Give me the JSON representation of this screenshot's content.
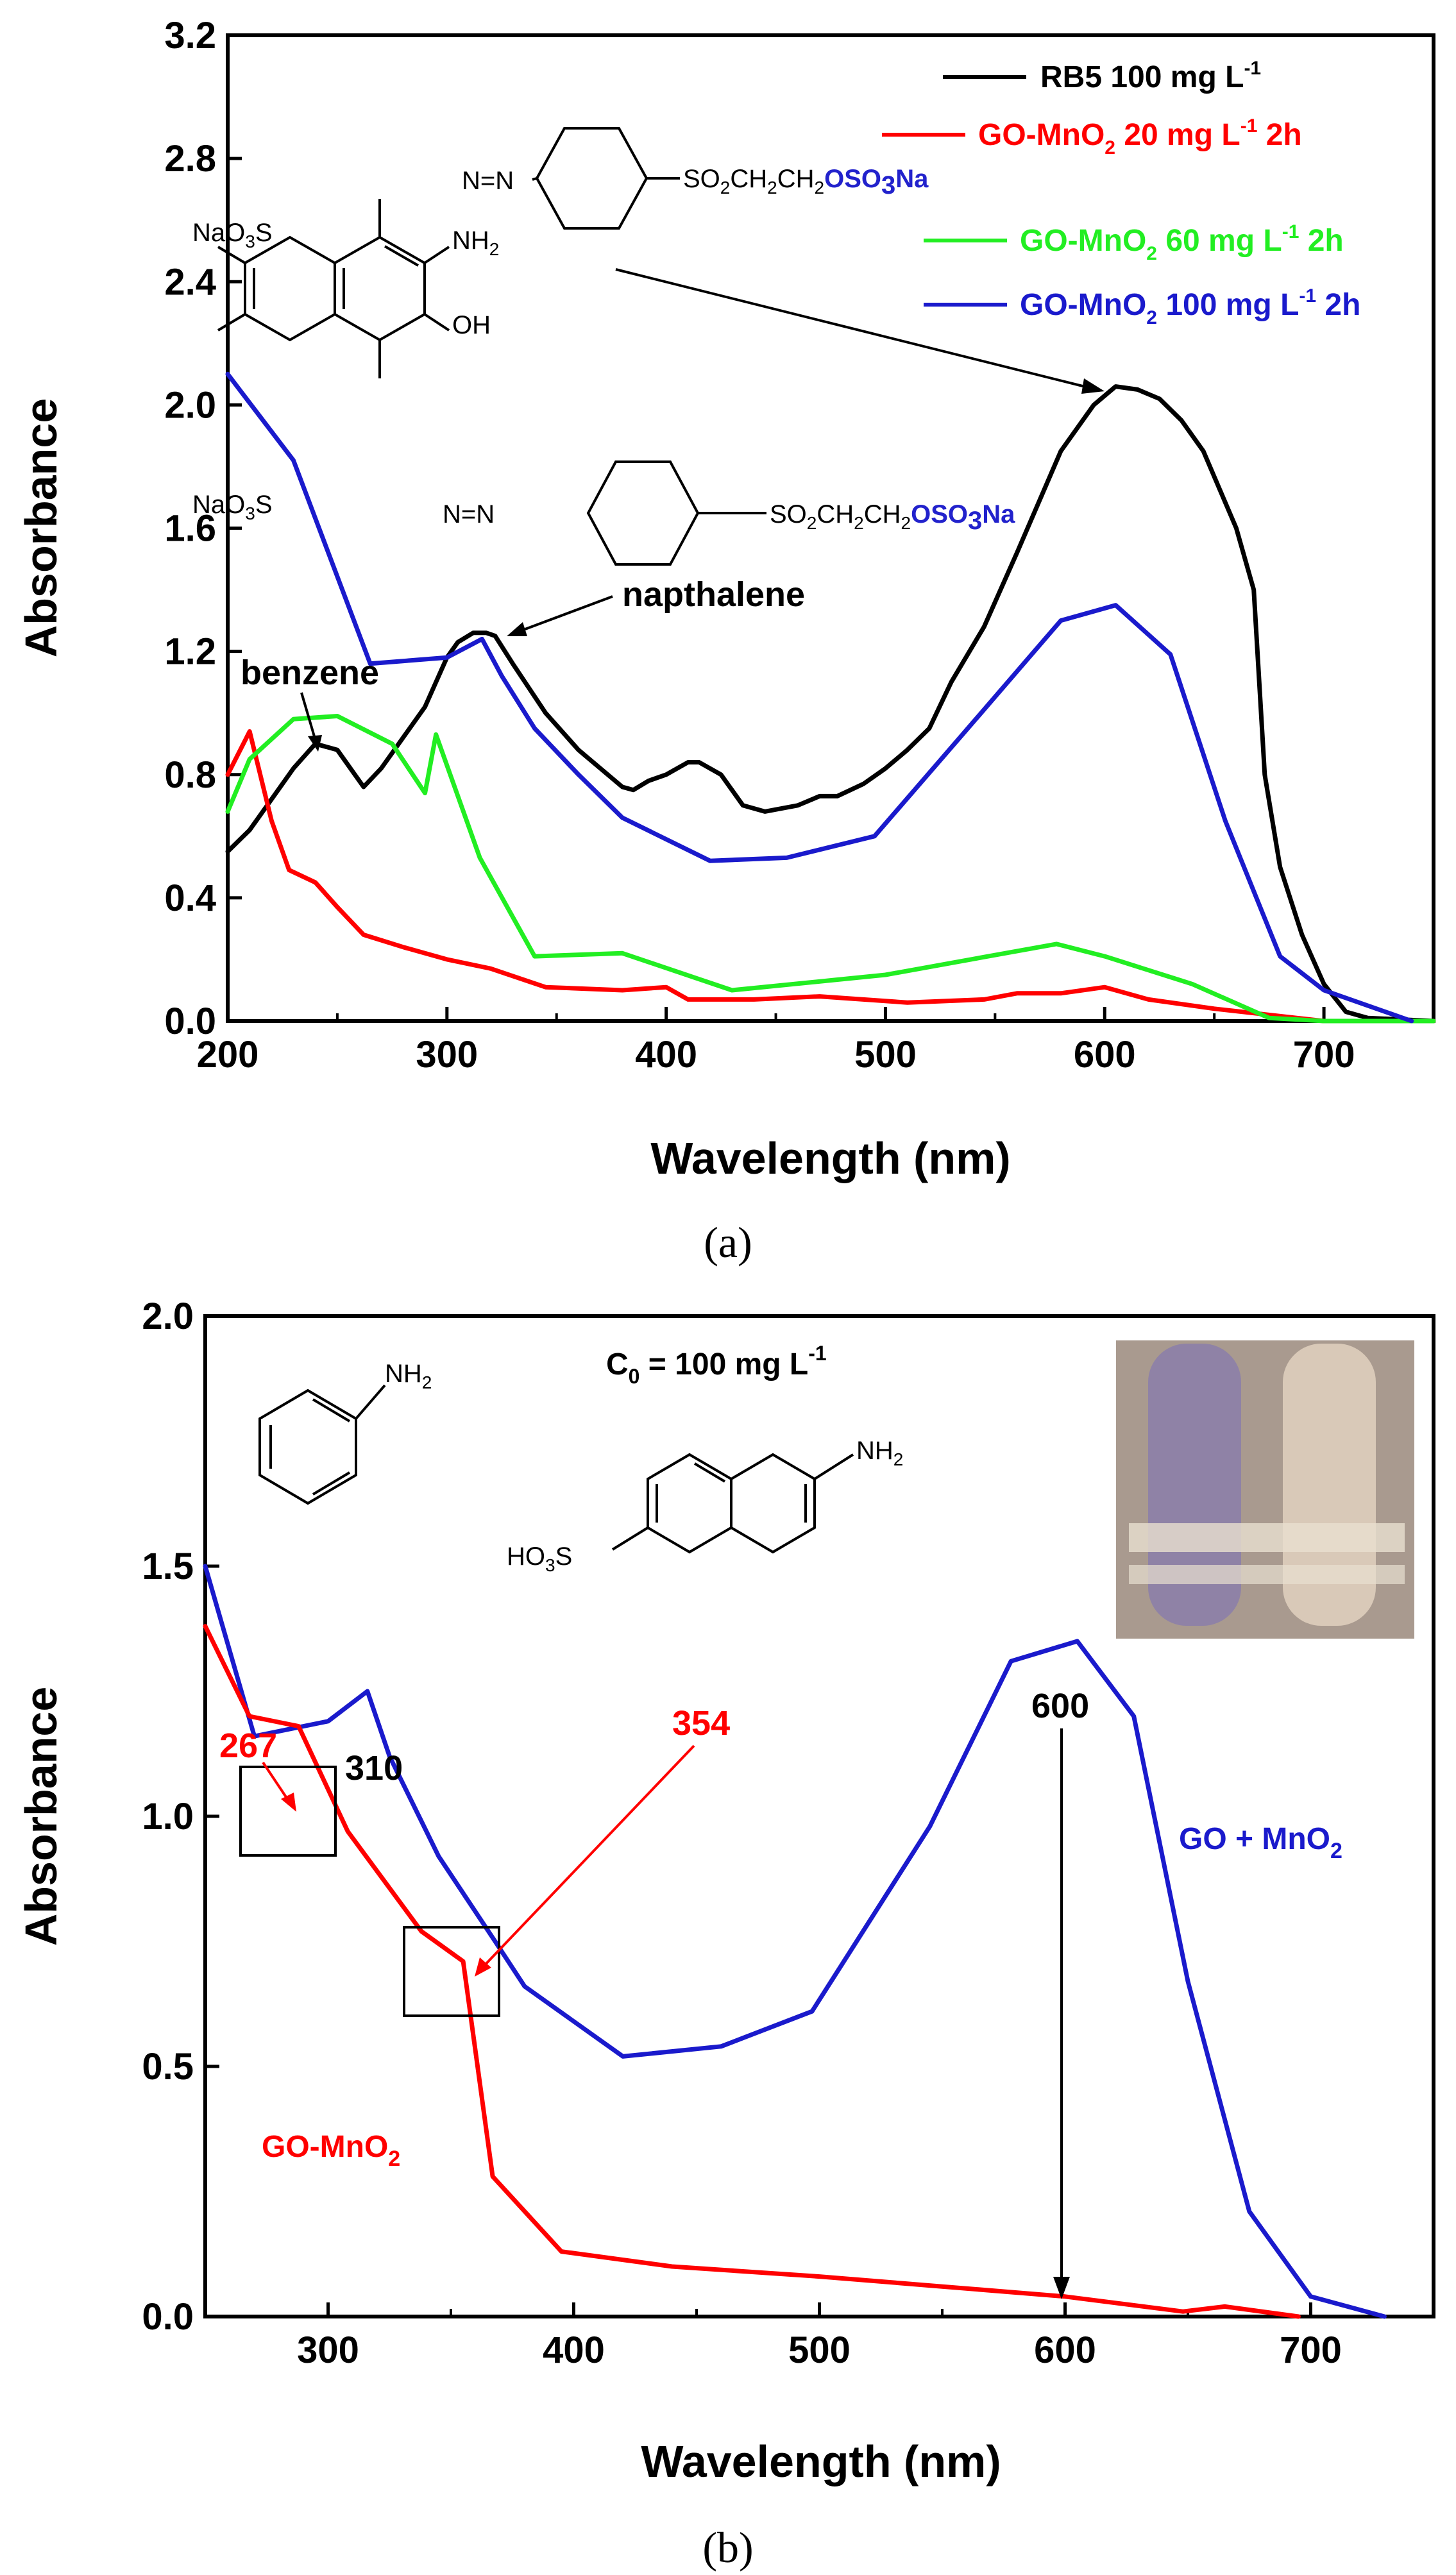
{
  "chart_data": [
    {
      "type": "line",
      "panel_label": "(a)",
      "xlabel": "Wavelength (nm)",
      "ylabel": "Absorbance",
      "xlim": [
        200,
        750
      ],
      "ylim": [
        0,
        3.2
      ],
      "xticks": [
        "200",
        "300",
        "400",
        "500",
        "600",
        "700"
      ],
      "yticks": [
        "0.0",
        "0.4",
        "0.8",
        "1.2",
        "1.6",
        "2.0",
        "2.4",
        "2.8",
        "3.2"
      ],
      "legend_position": "top-right",
      "series": [
        {
          "name": "RB5 100 mg L-1",
          "color": "#000000",
          "x": [
            200,
            210,
            220,
            230,
            240,
            250,
            262,
            270,
            290,
            300,
            305,
            312,
            318,
            322,
            330,
            345,
            360,
            380,
            385,
            392,
            400,
            410,
            415,
            425,
            435,
            445,
            460,
            470,
            478,
            490,
            500,
            510,
            520,
            530,
            545,
            560,
            580,
            595,
            605,
            615,
            625,
            635,
            645,
            660,
            668,
            673,
            680,
            690,
            700,
            710,
            720,
            750
          ],
          "y": [
            0.55,
            0.62,
            0.72,
            0.82,
            0.9,
            0.88,
            0.76,
            0.82,
            1.02,
            1.18,
            1.23,
            1.26,
            1.26,
            1.25,
            1.16,
            1.0,
            0.88,
            0.76,
            0.75,
            0.78,
            0.8,
            0.84,
            0.84,
            0.8,
            0.7,
            0.68,
            0.7,
            0.73,
            0.73,
            0.77,
            0.82,
            0.88,
            0.95,
            1.1,
            1.28,
            1.52,
            1.85,
            2.0,
            2.06,
            2.05,
            2.02,
            1.95,
            1.85,
            1.6,
            1.4,
            0.8,
            0.5,
            0.28,
            0.12,
            0.03,
            0.01,
            0.0
          ]
        },
        {
          "name": "GO-MnO2 20 mg L-1 2h",
          "color": "#ff0000",
          "x": [
            200,
            210,
            220,
            228,
            240,
            250,
            262,
            280,
            300,
            320,
            345,
            380,
            400,
            410,
            440,
            470,
            510,
            545,
            560,
            580,
            600,
            620,
            650,
            700,
            750
          ],
          "y": [
            0.8,
            0.94,
            0.65,
            0.49,
            0.45,
            0.37,
            0.28,
            0.24,
            0.2,
            0.17,
            0.11,
            0.1,
            0.11,
            0.07,
            0.07,
            0.08,
            0.06,
            0.07,
            0.09,
            0.09,
            0.11,
            0.07,
            0.04,
            0.0,
            0.0
          ]
        },
        {
          "name": "GO-MnO2 60 mg L-1 2h",
          "color": "#22ee22",
          "x": [
            200,
            210,
            230,
            250,
            275,
            290,
            295,
            315,
            340,
            380,
            430,
            500,
            578,
            600,
            640,
            675,
            700,
            750
          ],
          "y": [
            0.68,
            0.85,
            0.98,
            0.99,
            0.9,
            0.74,
            0.93,
            0.53,
            0.21,
            0.22,
            0.1,
            0.15,
            0.25,
            0.21,
            0.12,
            0.01,
            0.0,
            0.0
          ]
        },
        {
          "name": "GO-MnO2 100 mg L-1 2h",
          "color": "#1a1acc",
          "x": [
            200,
            230,
            265,
            300,
            316,
            325,
            340,
            360,
            380,
            420,
            455,
            495,
            540,
            580,
            605,
            630,
            655,
            680,
            700,
            740
          ],
          "y": [
            2.1,
            1.82,
            1.16,
            1.18,
            1.24,
            1.12,
            0.95,
            0.8,
            0.66,
            0.52,
            0.53,
            0.6,
            0.97,
            1.3,
            1.35,
            1.19,
            0.65,
            0.21,
            0.1,
            0.0
          ]
        }
      ],
      "annotations": [
        "benzene",
        "napthalene"
      ],
      "structure_labels": [
        "NaO3S",
        "N=N",
        "SO2CH2CH2",
        "OSO3Na",
        "NH2",
        "OH",
        "NaO3S",
        "N=N",
        "SO2CH2CH2",
        "OSO3Na"
      ]
    },
    {
      "type": "line",
      "panel_label": "(b)",
      "xlabel": "Wavelength (nm)",
      "ylabel": "Absorbance",
      "xlim": [
        250,
        750
      ],
      "ylim": [
        0,
        2.0
      ],
      "xticks": [
        "300",
        "400",
        "500",
        "600",
        "700"
      ],
      "yticks": [
        "0.0",
        "0.5",
        "1.0",
        "1.5",
        "2.0"
      ],
      "series": [
        {
          "name": "GO + MnO2",
          "color": "#1a1acc",
          "x": [
            250,
            270,
            300,
            316,
            325,
            345,
            368,
            380,
            420,
            460,
            497,
            545,
            578,
            605,
            628,
            650,
            675,
            700,
            730
          ],
          "y": [
            1.5,
            1.16,
            1.19,
            1.25,
            1.12,
            0.92,
            0.75,
            0.66,
            0.52,
            0.54,
            0.61,
            0.98,
            1.31,
            1.35,
            1.2,
            0.67,
            0.21,
            0.04,
            0.0
          ]
        },
        {
          "name": "GO-MnO2",
          "color": "#ff0000",
          "x": [
            250,
            268,
            288,
            308,
            338,
            355,
            367,
            395,
            440,
            500,
            550,
            600,
            648,
            665,
            695
          ],
          "y": [
            1.38,
            1.2,
            1.18,
            0.97,
            0.77,
            0.71,
            0.28,
            0.13,
            0.1,
            0.08,
            0.06,
            0.04,
            0.01,
            0.02,
            0.0
          ]
        }
      ],
      "annotations": {
        "c0": "C0 = 100 mg L-1",
        "p267": "267",
        "p310": "310",
        "p354": "354",
        "p600": "600"
      },
      "structure_labels": [
        "NH2",
        "NH2",
        "HO3S"
      ]
    }
  ],
  "legend_a": [
    {
      "label": "RB5 100 mg L",
      "sup": "-1",
      "tail": ""
    },
    {
      "label": "GO-MnO",
      "sub": "2",
      "mid": "  20 mg L",
      "sup": "-1",
      "tail": " 2h"
    },
    {
      "label": "GO-MnO",
      "sub": "2",
      "mid": "  60 mg L",
      "sup": "-1",
      "tail": " 2h"
    },
    {
      "label": "GO-MnO",
      "sub": "2",
      "mid": " 100 mg L",
      "sup": "-1",
      "tail": " 2h"
    }
  ],
  "panel_a": {
    "benzene": "benzene",
    "napthalene": "napthalene",
    "naso3s_1": "NaO",
    "naso3s_1b": "S",
    "azo": "N=N",
    "so2": "SO",
    "so2b": "CH",
    "so2c": "CH",
    "oso3na": "OSO",
    "oso3na_b": "Na",
    "nh2": "NH",
    "oh": "OH",
    "sub2": "2",
    "sub3": "3"
  },
  "panel_b": {
    "c0_c": "C",
    "c0_sub": "0",
    "c0_rest": " = 100 mg L",
    "c0_sup": "-1",
    "p267": "267",
    "p310": "310",
    "p354": "354",
    "p600": "600",
    "go_mno2_blue": "GO + MnO",
    "go_mno2_red": "GO-MnO",
    "sub2": "2",
    "nh2": "NH",
    "ho3s": "HO",
    "ho3s_b": "S"
  },
  "captions": {
    "a": "(a)",
    "b": "(b)"
  },
  "photo": {
    "tube_left_color": "#8f82a6",
    "tube_right_color": "#d9c9b8",
    "bg_color": "#a99a8f"
  }
}
